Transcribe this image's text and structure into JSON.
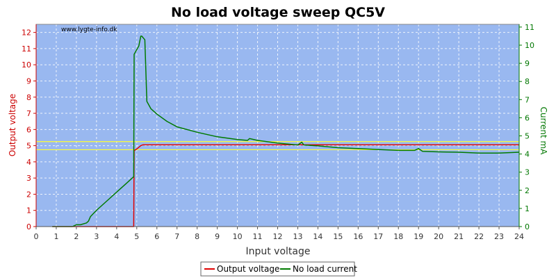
{
  "chart_data": {
    "type": "line",
    "title": "No load voltage sweep QC5V",
    "watermark": "www.lygte-info.dk",
    "xlabel": "Input voltage",
    "ylabel_left": "Output voltage",
    "ylabel_right": "Current mA",
    "xlim": [
      0,
      24
    ],
    "ylim_left": [
      0,
      12.5
    ],
    "ylim_right": [
      0,
      11.15
    ],
    "x_ticks": [
      0,
      1,
      2,
      3,
      4,
      5,
      6,
      7,
      8,
      9,
      10,
      11,
      12,
      13,
      14,
      15,
      16,
      17,
      18,
      19,
      20,
      21,
      22,
      23,
      24
    ],
    "y_left_ticks": [
      0,
      1,
      2,
      3,
      4,
      5,
      6,
      7,
      8,
      9,
      10,
      11,
      12
    ],
    "y_right_ticks": [
      0,
      1,
      2,
      3,
      4,
      5,
      6,
      7,
      8,
      9,
      10,
      11
    ],
    "grid": true,
    "legend_position": "bottom-center",
    "colors": {
      "plot_bg": "#99b8f0",
      "grid": "#ffffff",
      "output_voltage": "#e00000",
      "no_load_current": "#007a00",
      "limit_lines": "#ffff33",
      "left_axis": "#cc0000",
      "right_axis": "#007700"
    },
    "reference_lines_left": [
      4.75,
      5.25
    ],
    "series": [
      {
        "name": "Output voltage",
        "axis": "left",
        "x": [
          0.8,
          4.85,
          4.87,
          5.0,
          5.2,
          5.3,
          10,
          15,
          20,
          24
        ],
        "y": [
          0,
          0,
          4.7,
          4.8,
          5.0,
          5.05,
          5.05,
          5.05,
          5.05,
          5.05
        ]
      },
      {
        "name": "No load current",
        "axis": "right",
        "x": [
          0.8,
          1.8,
          2.0,
          2.2,
          2.5,
          2.6,
          2.7,
          3.0,
          3.5,
          4.0,
          4.5,
          4.85,
          4.87,
          5.1,
          5.2,
          5.25,
          5.4,
          5.5,
          5.7,
          6.0,
          6.5,
          7.0,
          8.0,
          9.0,
          10.0,
          10.5,
          10.6,
          11.0,
          12.0,
          13.0,
          13.2,
          13.3,
          14.0,
          15.0,
          16.0,
          17.0,
          18.0,
          18.8,
          19.0,
          19.2,
          20.0,
          21.0,
          22.0,
          23.0,
          24.0
        ],
        "y": [
          0,
          0,
          0.1,
          0.1,
          0.2,
          0.3,
          0.55,
          0.9,
          1.4,
          1.9,
          2.4,
          2.75,
          9.5,
          9.95,
          10.5,
          10.5,
          10.3,
          6.9,
          6.5,
          6.2,
          5.8,
          5.5,
          5.2,
          4.95,
          4.8,
          4.75,
          4.85,
          4.75,
          4.6,
          4.5,
          4.65,
          4.5,
          4.45,
          4.35,
          4.3,
          4.25,
          4.2,
          4.2,
          4.3,
          4.15,
          4.12,
          4.1,
          4.05,
          4.05,
          4.1
        ]
      }
    ]
  }
}
